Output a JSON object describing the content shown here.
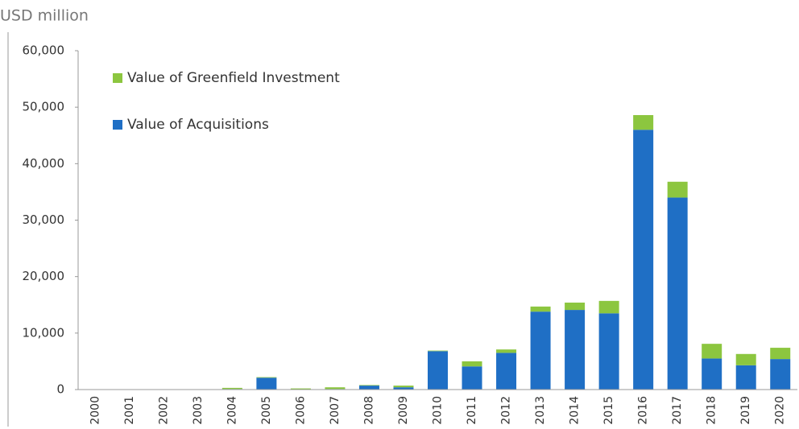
{
  "chart_data": {
    "type": "stacked_bar",
    "subtitle": "USD million",
    "categories": [
      "2000",
      "2001",
      "2002",
      "2003",
      "2004",
      "2005",
      "2006",
      "2007",
      "2008",
      "2009",
      "2010",
      "2011",
      "2012",
      "2013",
      "2014",
      "2015",
      "2016",
      "2017",
      "2018",
      "2019",
      "2020"
    ],
    "series": [
      {
        "name": "Value of Acquisitions",
        "color": "#1f6fc5",
        "values": [
          0,
          0,
          0,
          0,
          100,
          2100,
          0,
          100,
          700,
          400,
          6800,
          4100,
          6500,
          13800,
          14100,
          13500,
          46000,
          34000,
          5500,
          4300,
          5400
        ]
      },
      {
        "name": "Value of Greenfield Investment",
        "color": "#8cc63f",
        "values": [
          0,
          0,
          0,
          0,
          200,
          100,
          200,
          300,
          100,
          300,
          100,
          900,
          600,
          900,
          1300,
          2200,
          2600,
          2800,
          2600,
          2000,
          2000
        ]
      }
    ],
    "ylim": [
      0,
      60000
    ],
    "yticks": [
      0,
      {
        "value": 10000,
        "label": "10,000"
      },
      {
        "value": 20000,
        "label": "20,000"
      },
      {
        "value": 30000,
        "label": "30,000"
      },
      {
        "value": 40000,
        "label": "40,000"
      },
      {
        "value": 50000,
        "label": "50,000"
      },
      {
        "value": 60000,
        "label": "60,000"
      }
    ],
    "grid": false,
    "legend": "upper left"
  }
}
